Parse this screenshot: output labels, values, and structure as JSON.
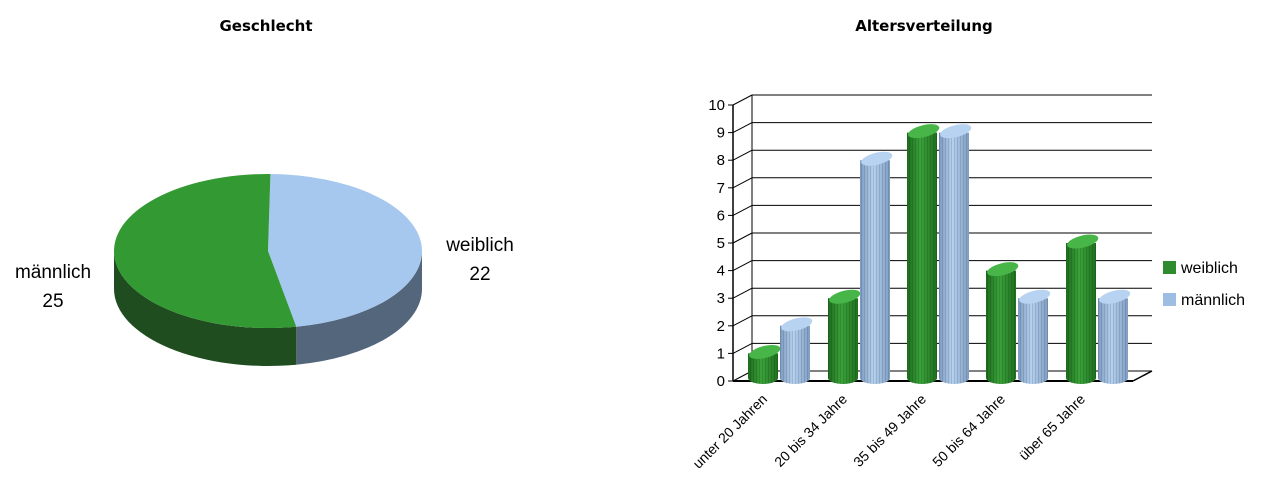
{
  "chart_data": [
    {
      "type": "pie",
      "title": "Geschlecht",
      "slices": [
        {
          "label": "weiblich",
          "value": 22,
          "color": "#a7c8ee",
          "side": "#53667c"
        },
        {
          "label": "männlich",
          "value": 25,
          "color": "#339933",
          "side": "#1f4d1f"
        }
      ]
    },
    {
      "type": "bar",
      "title": "Altersverteilung",
      "categories": [
        "unter 20 Jahren",
        "20 bis 34 Jahre",
        "35 bis 49 Jahre",
        "50 bis 64 Jahre",
        "über 65 Jahre"
      ],
      "series": [
        {
          "name": "weiblich",
          "values": [
            1,
            3,
            9,
            4,
            5
          ],
          "color": "#2e8b2e"
        },
        {
          "name": "männlich",
          "values": [
            2,
            8,
            9,
            3,
            3
          ],
          "color": "#9dbde2"
        }
      ],
      "ylim": [
        0,
        10
      ],
      "yticks": [
        "0",
        "1",
        "2",
        "3",
        "4",
        "5",
        "6",
        "7",
        "8",
        "9",
        "10"
      ],
      "grid": true,
      "legend": "right"
    }
  ]
}
